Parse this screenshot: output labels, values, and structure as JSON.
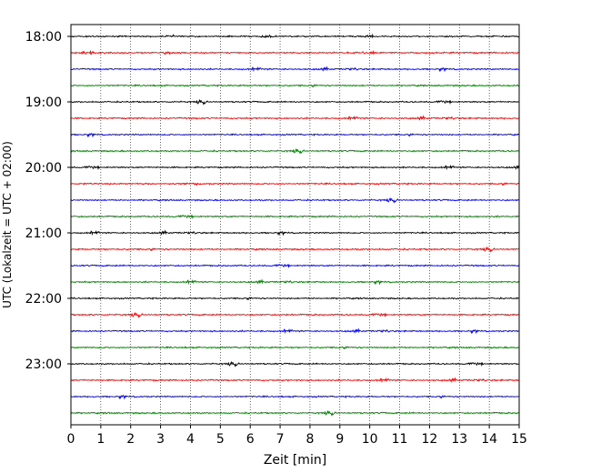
{
  "chart_data": {
    "type": "line",
    "title": "",
    "xlabel": "Zeit  [min]",
    "ylabel": "UTC (Lokalzeit = UTC + 02:00)",
    "xlim": [
      0,
      15
    ],
    "x_ticks": [
      0,
      1,
      2,
      3,
      4,
      5,
      6,
      7,
      8,
      9,
      10,
      11,
      12,
      13,
      14,
      15
    ],
    "y_tick_labels": [
      "18:00",
      "19:00",
      "20:00",
      "21:00",
      "22:00",
      "23:00"
    ],
    "start_time": "18:00",
    "trace_interval_min": 15,
    "trace_count": 24,
    "color_cycle": [
      "#000000",
      "#ff0000",
      "#0000ff",
      "#008000"
    ],
    "grid_x": true,
    "grid_style": "dotted"
  }
}
